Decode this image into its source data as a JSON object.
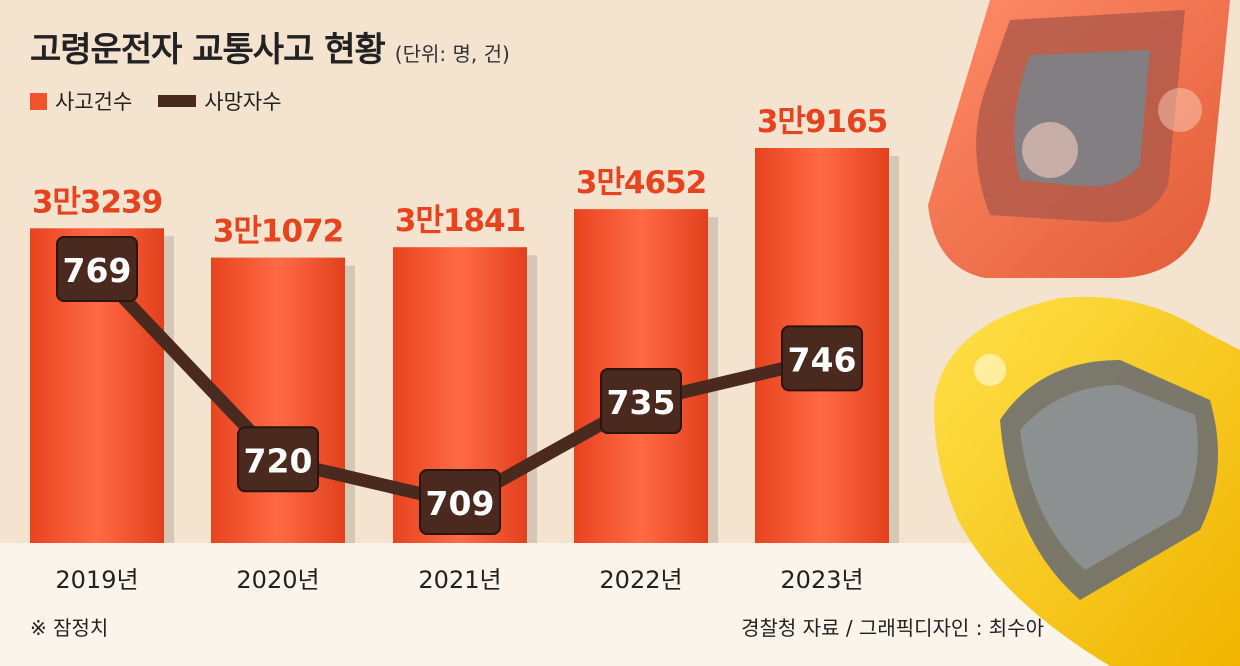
{
  "title": "고령운전자 교통사고 현황",
  "unit": "(단위: 명, 건)",
  "legend": {
    "bar": "사고건수",
    "line": "사망자수"
  },
  "note": "※ 잠정치",
  "source": "경찰청 자료 / 그래픽디자인 : 최수아",
  "colors": {
    "bar": "#f0542f",
    "line": "#4a2a1f",
    "accent": "#e8431f",
    "background": "#f3e3cf"
  },
  "chart_data": {
    "type": "bar",
    "categories": [
      "2019년",
      "2020년",
      "2021년",
      "2022년",
      "2023년"
    ],
    "series": [
      {
        "name": "사고건수",
        "type": "bar",
        "values": [
          33239,
          31072,
          31841,
          34652,
          39165
        ],
        "labels": [
          "3만3239",
          "3만1072",
          "3만1841",
          "3만4652",
          "3만9165"
        ]
      },
      {
        "name": "사망자수",
        "type": "line",
        "values": [
          769,
          720,
          709,
          735,
          746
        ]
      }
    ],
    "legend_position": "top-left",
    "grid": false
  }
}
